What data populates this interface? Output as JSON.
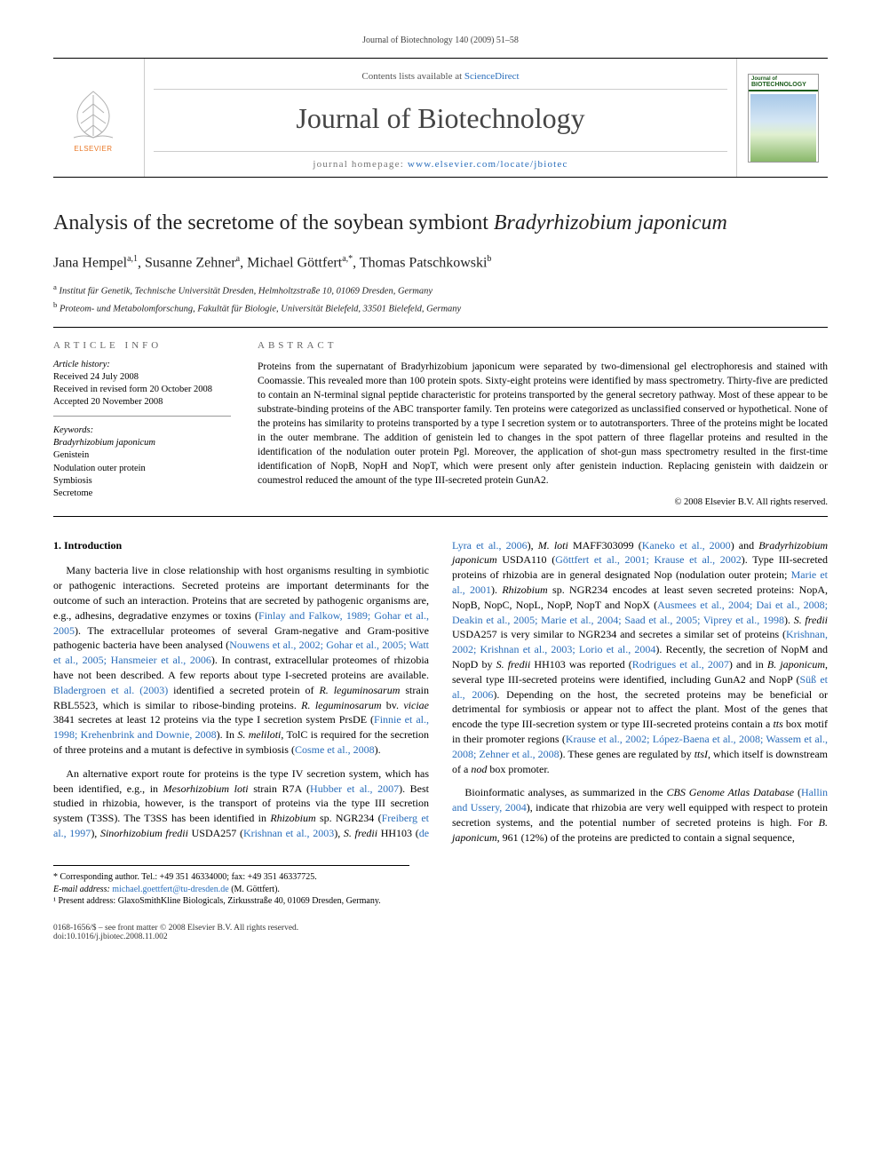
{
  "running_header": "Journal of Biotechnology 140 (2009) 51–58",
  "masthead": {
    "contents_prefix": "Contents lists available at ",
    "contents_link": "ScienceDirect",
    "journal_name": "Journal of Biotechnology",
    "homepage_prefix": "journal homepage: ",
    "homepage_url": "www.elsevier.com/locate/jbiotec",
    "publisher": "ELSEVIER",
    "cover_label_top": "Journal of",
    "cover_label": "BIOTECHNOLOGY"
  },
  "title_html": "Analysis of the secretome of the soybean symbiont <em>Bradyrhizobium japonicum</em>",
  "authors_html": "Jana Hempel<sup>a,1</sup>, Susanne Zehner<sup>a</sup>, Michael Göttfert<sup>a,*</sup>, Thomas Patschkowski<sup>b</sup>",
  "affiliations": [
    {
      "mark": "a",
      "text": "Institut für Genetik, Technische Universität Dresden, Helmholtzstraße 10, 01069 Dresden, Germany"
    },
    {
      "mark": "b",
      "text": "Proteom- und Metabolomforschung, Fakultät für Biologie, Universität Bielefeld, 33501 Bielefeld, Germany"
    }
  ],
  "article_info_head": "ARTICLE INFO",
  "abstract_head": "ABSTRACT",
  "history_head": "Article history:",
  "history": [
    "Received 24 July 2008",
    "Received in revised form 20 October 2008",
    "Accepted 20 November 2008"
  ],
  "keywords_head": "Keywords:",
  "keywords": [
    "Bradyrhizobium japonicum",
    "Genistein",
    "Nodulation outer protein",
    "Symbiosis",
    "Secretome"
  ],
  "keywords_italic_indices": [
    0
  ],
  "abstract": "Proteins from the supernatant of Bradyrhizobium japonicum were separated by two-dimensional gel electrophoresis and stained with Coomassie. This revealed more than 100 protein spots. Sixty-eight proteins were identified by mass spectrometry. Thirty-five are predicted to contain an N-terminal signal peptide characteristic for proteins transported by the general secretory pathway. Most of these appear to be substrate-binding proteins of the ABC transporter family. Ten proteins were categorized as unclassified conserved or hypothetical. None of the proteins has similarity to proteins transported by a type I secretion system or to autotransporters. Three of the proteins might be located in the outer membrane. The addition of genistein led to changes in the spot pattern of three flagellar proteins and resulted in the identification of the nodulation outer protein Pgl. Moreover, the application of shot-gun mass spectrometry resulted in the first-time identification of NopB, NopH and NopT, which were present only after genistein induction. Replacing genistein with daidzein or coumestrol reduced the amount of the type III-secreted protein GunA2.",
  "copyright": "© 2008 Elsevier B.V. All rights reserved.",
  "section_heading": "1.  Introduction",
  "para1_html": "Many bacteria live in close relationship with host organisms resulting in symbiotic or pathogenic interactions. Secreted proteins are important determinants for the outcome of such an interaction. Proteins that are secreted by pathogenic organisms are, e.g., adhesins, degradative enzymes or toxins (<a class='cite' href='#'>Finlay and Falkow, 1989; Gohar et al., 2005</a>). The extracellular proteomes of several Gram-negative and Gram-positive pathogenic bacteria have been analysed (<a class='cite' href='#'>Nouwens et al., 2002; Gohar et al., 2005; Watt et al., 2005; Hansmeier et al., 2006</a>). In contrast, extracellular proteomes of rhizobia have not been described. A few reports about type I-secreted proteins are available. <a class='cite' href='#'>Bladergroen et al. (2003)</a> identified a secreted protein of <em>R. leguminosarum</em> strain RBL5523, which is similar to ribose-binding proteins. <em>R. leguminosarum</em> bv. <em>viciae</em> 3841 secretes at least 12 proteins via the type I secretion system PrsDE (<a class='cite' href='#'>Finnie et al., 1998; Krehenbrink and Downie, 2008</a>). In <em>S. meliloti</em>, TolC is required for the secretion of three proteins and a mutant is defective in symbiosis (<a class='cite' href='#'>Cosme et al., 2008</a>).",
  "para2_html": "An alternative export route for proteins is the type IV secretion system, which has been identified, e.g., in <em>Mesorhizobium loti</em> strain R7A (<a class='cite' href='#'>Hubber et al., 2007</a>). Best studied in rhizobia, however, is the transport of proteins via the type III secretion system (T3SS). The T3SS has been identified in <em>Rhizobium</em> sp. NGR234 (<a class='cite' href='#'>Freiberg et al., 1997</a>), <em>Sinorhizobium fredii</em> USDA257 (<a class='cite' href='#'>Krishnan et al., 2003</a>), <em>S. fredii</em> HH103 (<a class='cite' href='#'>de Lyra et al., 2006</a>), <em>M. loti</em> MAFF303099 (<a class='cite' href='#'>Kaneko et al., 2000</a>) and <em>Bradyrhizobium japonicum</em> USDA110 (<a class='cite' href='#'>Göttfert et al., 2001; Krause et al., 2002</a>). Type III-secreted proteins of rhizobia are in general designated Nop (nodulation outer protein; <a class='cite' href='#'>Marie et al., 2001</a>). <em>Rhizobium</em> sp. NGR234 encodes at least seven secreted proteins: NopA, NopB, NopC, NopL, NopP, NopT and NopX (<a class='cite' href='#'>Ausmees et al., 2004; Dai et al., 2008; Deakin et al., 2005; Marie et al., 2004; Saad et al., 2005; Viprey et al., 1998</a>). <em>S. fredii</em> USDA257 is very similar to NGR234 and secretes a similar set of proteins (<a class='cite' href='#'>Krishnan, 2002; Krishnan et al., 2003; Lorio et al., 2004</a>). Recently, the secretion of NopM and NopD by <em>S. fredii</em> HH103 was reported (<a class='cite' href='#'>Rodrigues et al., 2007</a>) and in <em>B. japonicum</em>, several type III-secreted proteins were identified, including GunA2 and NopP (<a class='cite' href='#'>Süß et al., 2006</a>). Depending on the host, the secreted proteins may be beneficial or detrimental for symbiosis or appear not to affect the plant. Most of the genes that encode the type III-secretion system or type III-secreted proteins contain a <em>tts</em> box motif in their promoter regions (<a class='cite' href='#'>Krause et al., 2002; López-Baena et al., 2008; Wassem et al., 2008; Zehner et al., 2008</a>). These genes are regulated by <em>ttsI</em>, which itself is downstream of a <em>nod</em> box promoter.",
  "para3_html": "Bioinformatic analyses, as summarized in the <em>CBS Genome Atlas Database</em> (<a class='cite' href='#'>Hallin and Ussery, 2004</a>), indicate that rhizobia are very well equipped with respect to protein secretion systems, and the potential number of secreted proteins is high. For <em>B. japonicum</em>, 961 (12%) of the proteins are predicted to contain a signal sequence,",
  "footnotes": {
    "corr": "* Corresponding author. Tel.: +49 351 46334000; fax: +49 351 46337725.",
    "email_label": "E-mail address:",
    "email": "michael.goettfert@tu-dresden.de",
    "email_who": "(M. Göttfert).",
    "present": "¹ Present address: GlaxoSmithKline Biologicals, Zirkusstraße 40, 01069 Dresden, Germany."
  },
  "bottom": {
    "left1": "0168-1656/$ – see front matter © 2008 Elsevier B.V. All rights reserved.",
    "left2": "doi:10.1016/j.jbiotec.2008.11.002"
  },
  "colors": {
    "link": "#2a6ebb",
    "publisher": "#e97826",
    "cover_green": "#1a5c1a"
  }
}
